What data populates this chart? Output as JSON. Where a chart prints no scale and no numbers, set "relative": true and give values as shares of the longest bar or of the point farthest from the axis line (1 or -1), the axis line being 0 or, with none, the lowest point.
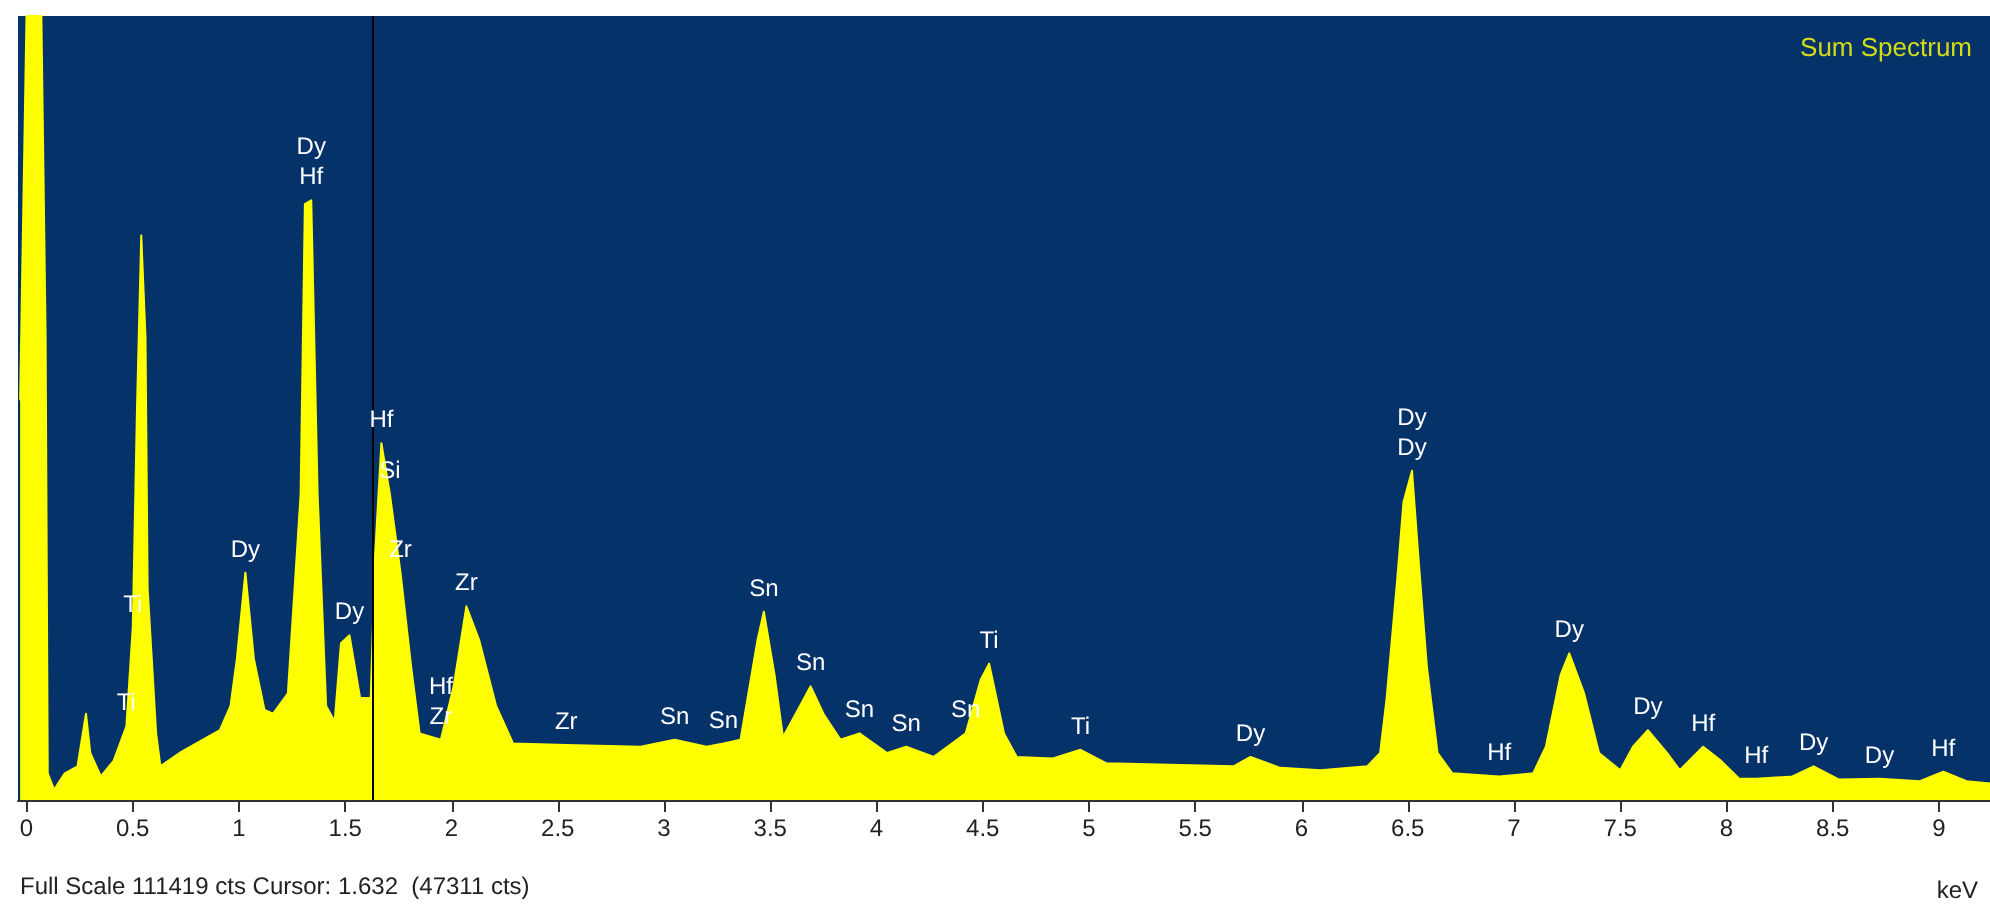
{
  "chart_data": {
    "type": "area",
    "title": "Sum Spectrum",
    "xlabel": "keV",
    "relative": true,
    "xlim": [
      -0.04,
      9.24
    ],
    "xticks": [
      0,
      0.5,
      1,
      1.5,
      2,
      2.5,
      3,
      3.5,
      4,
      4.5,
      5,
      5.5,
      6,
      6.5,
      7,
      7.5,
      8,
      8.5,
      9
    ],
    "grid": false,
    "series": [
      {
        "color": "#ffff00",
        "x": [
          -0.03,
          0.0,
          0.07,
          0.09,
          0.1,
          0.13,
          0.18,
          0.24,
          0.28,
          0.3,
          0.35,
          0.41,
          0.47,
          0.5,
          0.52,
          0.54,
          0.56,
          0.57,
          0.61,
          0.63,
          0.72,
          0.91,
          0.96,
          0.99,
          1.03,
          1.07,
          1.12,
          1.16,
          1.23,
          1.29,
          1.31,
          1.34,
          1.37,
          1.41,
          1.45,
          1.48,
          1.52,
          1.57,
          1.62,
          1.64,
          1.67,
          1.71,
          1.76,
          1.81,
          1.85,
          1.95,
          2.01,
          2.07,
          2.13,
          2.21,
          2.29,
          2.54,
          2.89,
          3.05,
          3.2,
          3.28,
          3.36,
          3.44,
          3.47,
          3.52,
          3.56,
          3.64,
          3.69,
          3.75,
          3.83,
          3.92,
          4.05,
          4.14,
          4.27,
          4.42,
          4.49,
          4.53,
          4.6,
          4.66,
          4.83,
          4.96,
          5.08,
          5.68,
          5.76,
          5.9,
          6.09,
          6.31,
          6.37,
          6.4,
          6.45,
          6.48,
          6.52,
          6.55,
          6.59,
          6.64,
          6.71,
          6.93,
          7.09,
          7.15,
          7.22,
          7.26,
          7.33,
          7.4,
          7.5,
          7.56,
          7.63,
          7.72,
          7.78,
          7.89,
          7.97,
          8.06,
          8.14,
          8.31,
          8.41,
          8.53,
          8.72,
          8.91,
          9.02,
          9.13,
          9.24
        ],
        "values": [
          0.51,
          1,
          1,
          0.59,
          0.034,
          0.013,
          0.034,
          0.043,
          0.11,
          0.06,
          0.03,
          0.05,
          0.094,
          0.22,
          0.5,
          0.72,
          0.59,
          0.27,
          0.085,
          0.043,
          0.06,
          0.089,
          0.12,
          0.18,
          0.29,
          0.18,
          0.115,
          0.11,
          0.136,
          0.39,
          0.76,
          0.765,
          0.39,
          0.12,
          0.1,
          0.2,
          0.21,
          0.13,
          0.13,
          0.31,
          0.455,
          0.39,
          0.29,
          0.17,
          0.085,
          0.077,
          0.145,
          0.247,
          0.204,
          0.12,
          0.072,
          0.07,
          0.068,
          0.077,
          0.068,
          0.072,
          0.077,
          0.204,
          0.24,
          0.16,
          0.08,
          0.12,
          0.145,
          0.11,
          0.077,
          0.085,
          0.06,
          0.068,
          0.055,
          0.085,
          0.153,
          0.174,
          0.085,
          0.055,
          0.053,
          0.064,
          0.047,
          0.043,
          0.055,
          0.041,
          0.038,
          0.043,
          0.06,
          0.128,
          0.28,
          0.38,
          0.42,
          0.31,
          0.17,
          0.06,
          0.034,
          0.03,
          0.034,
          0.068,
          0.16,
          0.187,
          0.136,
          0.06,
          0.038,
          0.068,
          0.089,
          0.06,
          0.038,
          0.068,
          0.051,
          0.027,
          0.027,
          0.03,
          0.043,
          0.026,
          0.027,
          0.024,
          0.036,
          0.024,
          0.021
        ]
      }
    ],
    "ref_lines": [
      {
        "axis": "x",
        "value": 1.632,
        "color": "#000000"
      }
    ],
    "annotations": [
      "Full Scale 111419 cts Cursor: 1.632  (47311 cts)",
      {
        "text": "Ti",
        "x": 0.5,
        "y": 0.22
      },
      {
        "text": "Ti",
        "x": 0.47,
        "y": 0.094
      },
      {
        "text": "Dy",
        "x": 1.03,
        "y": 0.29
      },
      {
        "text": "Dy",
        "x": 1.34,
        "y": 0.765
      },
      {
        "text": "Hf",
        "x": 1.34,
        "y": 0.765
      },
      {
        "text": "Dy",
        "x": 1.52,
        "y": 0.21
      },
      {
        "text": "Hf",
        "x": 1.67,
        "y": 0.455
      },
      {
        "text": "Si",
        "x": 1.71,
        "y": 0.39
      },
      {
        "text": "Zr",
        "x": 1.76,
        "y": 0.29
      },
      {
        "text": "Zr",
        "x": 2.07,
        "y": 0.247
      },
      {
        "text": "Hf",
        "x": 1.95,
        "y": 0.077
      },
      {
        "text": "Zr",
        "x": 1.95,
        "y": 0.077
      },
      {
        "text": "Zr",
        "x": 2.54,
        "y": 0.07
      },
      {
        "text": "Sn",
        "x": 3.05,
        "y": 0.077
      },
      {
        "text": "Sn",
        "x": 3.28,
        "y": 0.072
      },
      {
        "text": "Sn",
        "x": 3.47,
        "y": 0.24
      },
      {
        "text": "Sn",
        "x": 3.69,
        "y": 0.145
      },
      {
        "text": "Sn",
        "x": 3.92,
        "y": 0.085
      },
      {
        "text": "Sn",
        "x": 4.14,
        "y": 0.068
      },
      {
        "text": "Sn",
        "x": 4.42,
        "y": 0.085
      },
      {
        "text": "Ti",
        "x": 4.53,
        "y": 0.174
      },
      {
        "text": "Ti",
        "x": 4.96,
        "y": 0.064
      },
      {
        "text": "Dy",
        "x": 5.76,
        "y": 0.055
      },
      {
        "text": "Dy",
        "x": 6.52,
        "y": 0.42
      },
      {
        "text": "Dy",
        "x": 6.52,
        "y": 0.42
      },
      {
        "text": "Hf",
        "x": 6.93,
        "y": 0.03
      },
      {
        "text": "Dy",
        "x": 7.26,
        "y": 0.187
      },
      {
        "text": "Dy",
        "x": 7.63,
        "y": 0.089
      },
      {
        "text": "Hf",
        "x": 7.89,
        "y": 0.068
      },
      {
        "text": "Hf",
        "x": 8.14,
        "y": 0.027
      },
      {
        "text": "Dy",
        "x": 8.41,
        "y": 0.043
      },
      {
        "text": "Dy",
        "x": 8.72,
        "y": 0.027
      },
      {
        "text": "Hf",
        "x": 9.02,
        "y": 0.036
      }
    ]
  }
}
